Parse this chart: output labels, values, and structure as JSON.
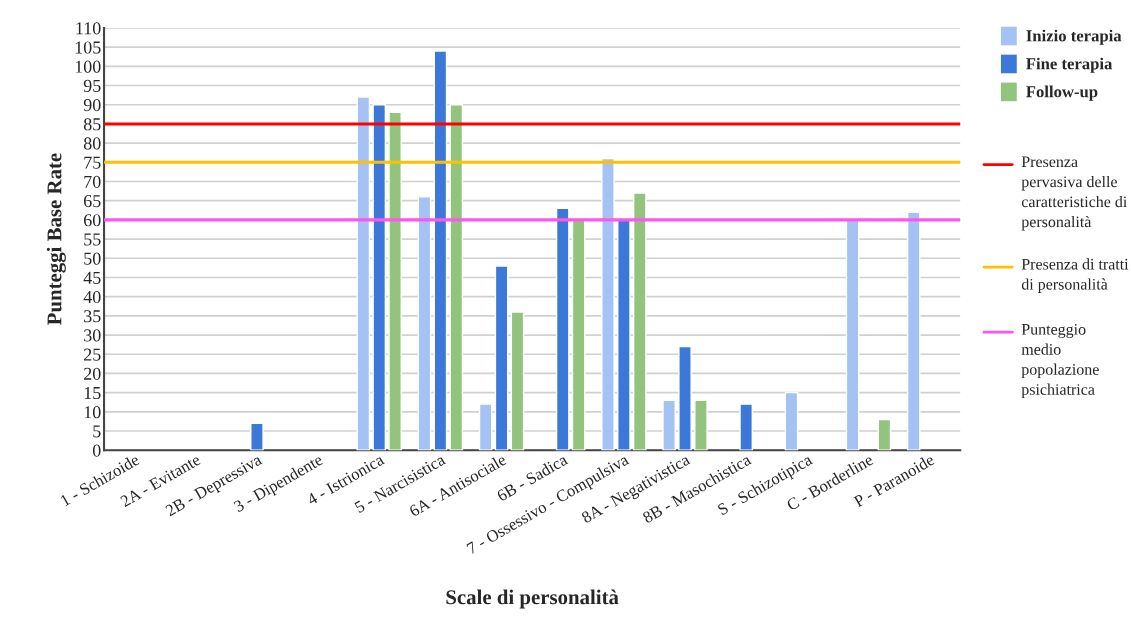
{
  "chart_data": {
    "type": "bar",
    "xlabel": "Scale di personalità",
    "ylabel": "Punteggi Base Rate",
    "categories": [
      "1 - Schizoide",
      "2A - Evitante",
      "2B - Depressiva",
      "3 - Dipendente",
      "4 - Istrionica",
      "5 - Narcisistica",
      "6A - Antisociale",
      "6B - Sadica",
      "7 - Ossessivo - Compulsiva",
      "8A - Negativistica",
      "8B - Masochistica",
      "S - Schizotipica",
      "C - Borderline",
      "P - Paranoide"
    ],
    "series": [
      {
        "name": "Inizio terapia",
        "color": "#a4c2f4",
        "values": [
          null,
          null,
          null,
          null,
          92,
          66,
          12,
          null,
          76,
          13,
          null,
          15,
          60,
          62
        ]
      },
      {
        "name": "Fine terapia",
        "color": "#3c78d8",
        "values": [
          null,
          null,
          7,
          null,
          90,
          104,
          48,
          63,
          60,
          27,
          12,
          null,
          null,
          null
        ]
      },
      {
        "name": "Follow-up",
        "color": "#93c47d",
        "values": [
          null,
          null,
          null,
          null,
          88,
          90,
          36,
          60,
          67,
          13,
          null,
          null,
          8,
          null
        ]
      }
    ],
    "ylim": [
      0,
      110
    ],
    "yticks": [
      0,
      5,
      10,
      15,
      20,
      25,
      30,
      35,
      40,
      45,
      50,
      55,
      60,
      65,
      70,
      75,
      80,
      85,
      90,
      95,
      100,
      105,
      110
    ],
    "grid": "y",
    "legend": "right",
    "ref_lines": [
      {
        "axis": "y",
        "value": 85,
        "label": "Presenza pervasiva delle caratteristiche di personalità",
        "color": "#ff0000"
      },
      {
        "axis": "y",
        "value": 75,
        "label": "Presenza di tratti di personalità",
        "color": "#ffc000"
      },
      {
        "axis": "y",
        "value": 60,
        "label": "Punteggio medio popolazione psichiatrica",
        "color": "#ff55ee"
      }
    ]
  }
}
